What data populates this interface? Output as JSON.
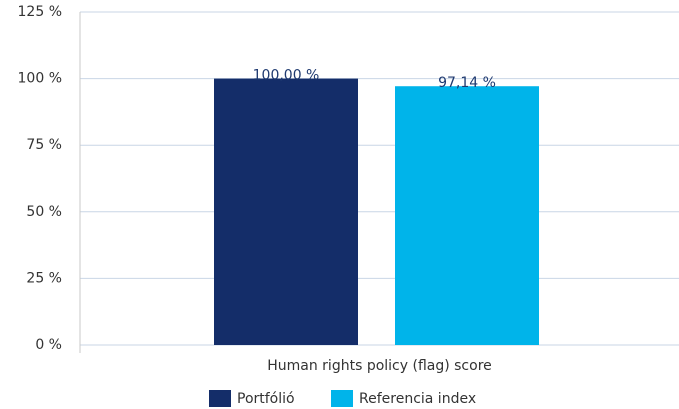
{
  "chart_data": {
    "type": "bar",
    "categories": [
      "Human rights policy (flag) score"
    ],
    "series": [
      {
        "name": "Portfólió",
        "color": "#142d69",
        "values": [
          100
        ],
        "value_labels": [
          "100,00 %"
        ]
      },
      {
        "name": "Referencia index",
        "color": "#00b4ea",
        "values": [
          97.14
        ],
        "value_labels": [
          "97,14 %"
        ]
      }
    ],
    "ylim": [
      0,
      125
    ],
    "yticks": [
      {
        "value": 0,
        "label": "0 %"
      },
      {
        "value": 25,
        "label": "25 %"
      },
      {
        "value": 50,
        "label": "50 %"
      },
      {
        "value": 75,
        "label": "75 %"
      },
      {
        "value": 100,
        "label": "100 %"
      },
      {
        "value": 125,
        "label": "125 %"
      }
    ],
    "grid": true,
    "legend": "bottom"
  }
}
